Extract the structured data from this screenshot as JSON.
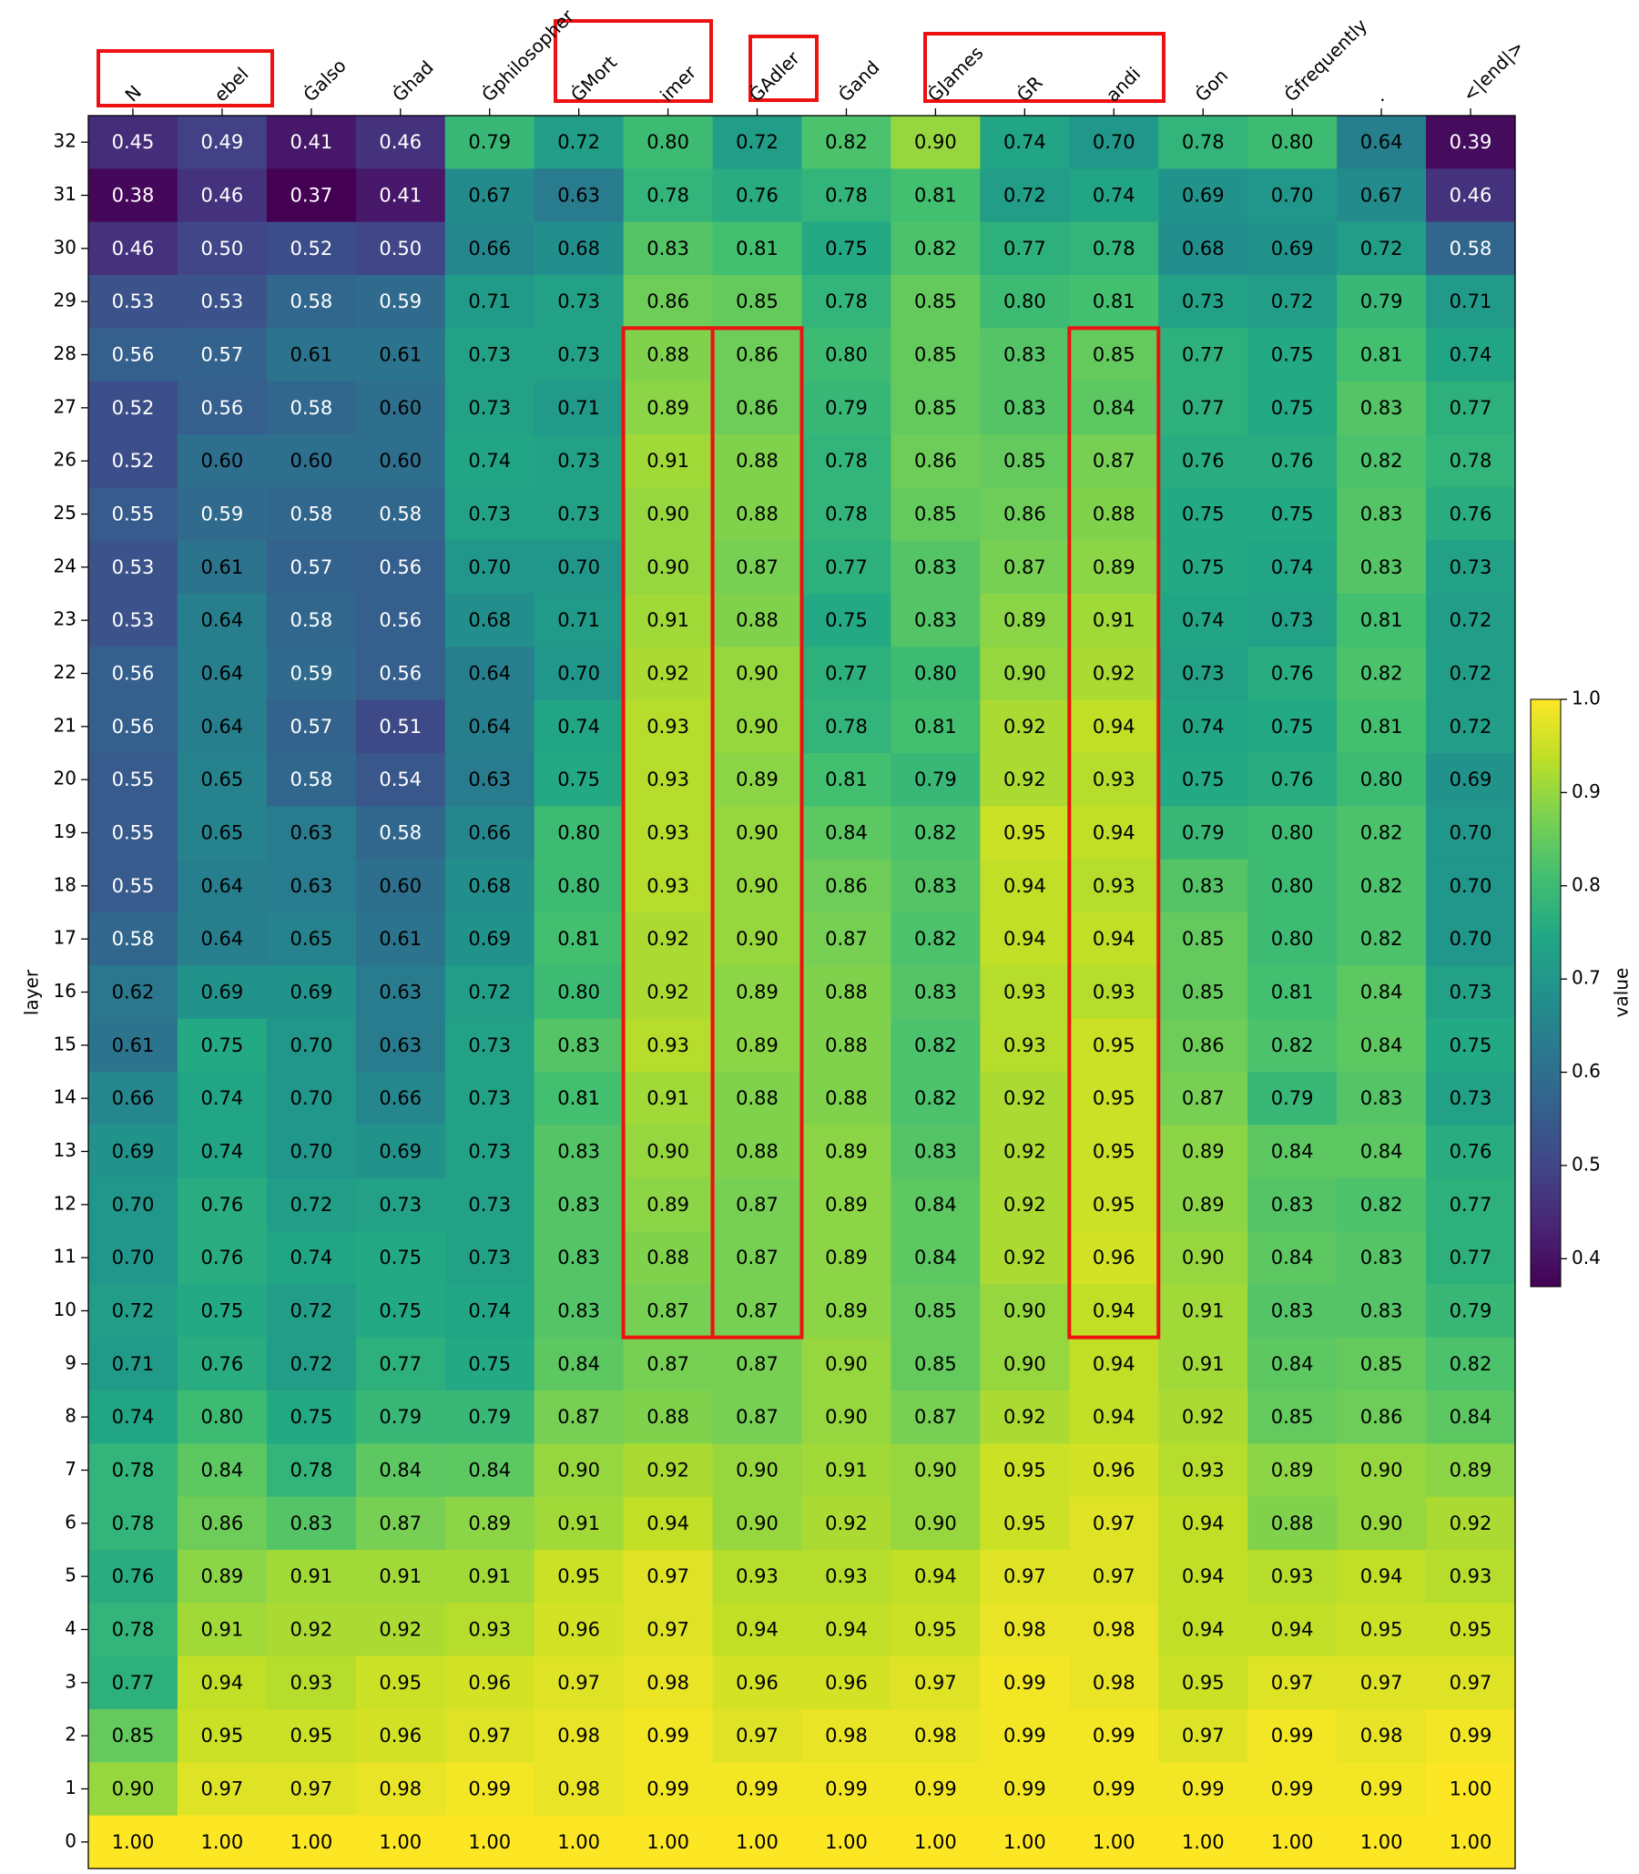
{
  "chart_data": {
    "type": "heatmap",
    "x_categories": [
      "N",
      "ebel",
      "Ġalso",
      "Ġhad",
      "Ġphilosopher",
      "ĠMort",
      "imer",
      "ĠAdler",
      "Ġand",
      "ĠJames",
      "ĠR",
      "andi",
      "Ġon",
      "Ġfrequently",
      ".",
      "<|end|>"
    ],
    "y_categories": [
      32,
      31,
      30,
      29,
      28,
      27,
      26,
      25,
      24,
      23,
      22,
      21,
      20,
      19,
      18,
      17,
      16,
      15,
      14,
      13,
      12,
      11,
      10,
      9,
      8,
      7,
      6,
      5,
      4,
      3,
      2,
      1,
      0
    ],
    "ylabel": "layer",
    "colorbar_label": "value",
    "colormap": "viridis",
    "zlim": [
      0.37,
      1.0
    ],
    "zticks": [
      0.4,
      0.5,
      0.6,
      0.7,
      0.8,
      0.9,
      {
        "value": 1.0,
        "label": "1.0"
      }
    ],
    "values": [
      [
        0.45,
        0.49,
        0.41,
        0.46,
        0.79,
        0.72,
        0.8,
        0.72,
        0.82,
        0.9,
        0.74,
        0.7,
        0.78,
        0.8,
        0.64,
        0.39
      ],
      [
        0.38,
        0.46,
        0.37,
        0.41,
        0.67,
        0.63,
        0.78,
        0.76,
        0.78,
        0.81,
        0.72,
        0.74,
        0.69,
        0.7,
        0.67,
        0.46
      ],
      [
        0.46,
        0.5,
        0.52,
        0.5,
        0.66,
        0.68,
        0.83,
        0.81,
        0.75,
        0.82,
        0.77,
        0.78,
        0.68,
        0.69,
        0.72,
        0.58
      ],
      [
        0.53,
        0.53,
        0.58,
        0.59,
        0.71,
        0.73,
        0.86,
        0.85,
        0.78,
        0.85,
        0.8,
        0.81,
        0.73,
        0.72,
        0.79,
        0.71
      ],
      [
        0.56,
        0.57,
        0.61,
        0.61,
        0.73,
        0.73,
        0.88,
        0.86,
        0.8,
        0.85,
        0.83,
        0.85,
        0.77,
        0.75,
        0.81,
        0.74
      ],
      [
        0.52,
        0.56,
        0.58,
        0.6,
        0.73,
        0.71,
        0.89,
        0.86,
        0.79,
        0.85,
        0.83,
        0.84,
        0.77,
        0.75,
        0.83,
        0.77
      ],
      [
        0.52,
        0.6,
        0.6,
        0.6,
        0.74,
        0.73,
        0.91,
        0.88,
        0.78,
        0.86,
        0.85,
        0.87,
        0.76,
        0.76,
        0.82,
        0.78
      ],
      [
        0.55,
        0.59,
        0.58,
        0.58,
        0.73,
        0.73,
        0.9,
        0.88,
        0.78,
        0.85,
        0.86,
        0.88,
        0.75,
        0.75,
        0.83,
        0.76
      ],
      [
        0.53,
        0.61,
        0.57,
        0.56,
        0.7,
        0.7,
        0.9,
        0.87,
        0.77,
        0.83,
        0.87,
        0.89,
        0.75,
        0.74,
        0.83,
        0.73
      ],
      [
        0.53,
        0.64,
        0.58,
        0.56,
        0.68,
        0.71,
        0.91,
        0.88,
        0.75,
        0.83,
        0.89,
        0.91,
        0.74,
        0.73,
        0.81,
        0.72
      ],
      [
        0.56,
        0.64,
        0.59,
        0.56,
        0.64,
        0.7,
        0.92,
        0.9,
        0.77,
        0.8,
        0.9,
        0.92,
        0.73,
        0.76,
        0.82,
        0.72
      ],
      [
        0.56,
        0.64,
        0.57,
        0.51,
        0.64,
        0.74,
        0.93,
        0.9,
        0.78,
        0.81,
        0.92,
        0.94,
        0.74,
        0.75,
        0.81,
        0.72
      ],
      [
        0.55,
        0.65,
        0.58,
        0.54,
        0.63,
        0.75,
        0.93,
        0.89,
        0.81,
        0.79,
        0.92,
        0.93,
        0.75,
        0.76,
        0.8,
        0.69
      ],
      [
        0.55,
        0.65,
        0.63,
        0.58,
        0.66,
        0.8,
        0.93,
        0.9,
        0.84,
        0.82,
        0.95,
        0.94,
        0.79,
        0.8,
        0.82,
        0.7
      ],
      [
        0.55,
        0.64,
        0.63,
        0.6,
        0.68,
        0.8,
        0.93,
        0.9,
        0.86,
        0.83,
        0.94,
        0.93,
        0.83,
        0.8,
        0.82,
        0.7
      ],
      [
        0.58,
        0.64,
        0.65,
        0.61,
        0.69,
        0.81,
        0.92,
        0.9,
        0.87,
        0.82,
        0.94,
        0.94,
        0.85,
        0.8,
        0.82,
        0.7
      ],
      [
        0.62,
        0.69,
        0.69,
        0.63,
        0.72,
        0.8,
        0.92,
        0.89,
        0.88,
        0.83,
        0.93,
        0.93,
        0.85,
        0.81,
        0.84,
        0.73
      ],
      [
        0.61,
        0.75,
        0.7,
        0.63,
        0.73,
        0.83,
        0.93,
        0.89,
        0.88,
        0.82,
        0.93,
        0.95,
        0.86,
        0.82,
        0.84,
        0.75
      ],
      [
        0.66,
        0.74,
        0.7,
        0.66,
        0.73,
        0.81,
        0.91,
        0.88,
        0.88,
        0.82,
        0.92,
        0.95,
        0.87,
        0.79,
        0.83,
        0.73
      ],
      [
        0.69,
        0.74,
        0.7,
        0.69,
        0.73,
        0.83,
        0.9,
        0.88,
        0.89,
        0.83,
        0.92,
        0.95,
        0.89,
        0.84,
        0.84,
        0.76
      ],
      [
        0.7,
        0.76,
        0.72,
        0.73,
        0.73,
        0.83,
        0.89,
        0.87,
        0.89,
        0.84,
        0.92,
        0.95,
        0.89,
        0.83,
        0.82,
        0.77
      ],
      [
        0.7,
        0.76,
        0.74,
        0.75,
        0.73,
        0.83,
        0.88,
        0.87,
        0.89,
        0.84,
        0.92,
        0.96,
        0.9,
        0.84,
        0.83,
        0.77
      ],
      [
        0.72,
        0.75,
        0.72,
        0.75,
        0.74,
        0.83,
        0.87,
        0.87,
        0.89,
        0.85,
        0.9,
        0.94,
        0.91,
        0.83,
        0.83,
        0.79
      ],
      [
        0.71,
        0.76,
        0.72,
        0.77,
        0.75,
        0.84,
        0.87,
        0.87,
        0.9,
        0.85,
        0.9,
        0.94,
        0.91,
        0.84,
        0.85,
        0.82
      ],
      [
        0.74,
        0.8,
        0.75,
        0.79,
        0.79,
        0.87,
        0.88,
        0.87,
        0.9,
        0.87,
        0.92,
        0.94,
        0.92,
        0.85,
        0.86,
        0.84
      ],
      [
        0.78,
        0.84,
        0.78,
        0.84,
        0.84,
        0.9,
        0.92,
        0.9,
        0.91,
        0.9,
        0.95,
        0.96,
        0.93,
        0.89,
        0.9,
        0.89
      ],
      [
        0.78,
        0.86,
        0.83,
        0.87,
        0.89,
        0.91,
        0.94,
        0.9,
        0.92,
        0.9,
        0.95,
        0.97,
        0.94,
        0.88,
        0.9,
        0.92
      ],
      [
        0.76,
        0.89,
        0.91,
        0.91,
        0.91,
        0.95,
        0.97,
        0.93,
        0.93,
        0.94,
        0.97,
        0.97,
        0.94,
        0.93,
        0.94,
        0.93
      ],
      [
        0.78,
        0.91,
        0.92,
        0.92,
        0.93,
        0.96,
        0.97,
        0.94,
        0.94,
        0.95,
        0.98,
        0.98,
        0.94,
        0.94,
        0.95,
        0.95
      ],
      [
        0.77,
        0.94,
        0.93,
        0.95,
        0.96,
        0.97,
        0.98,
        0.96,
        0.96,
        0.97,
        0.99,
        0.98,
        0.95,
        0.97,
        0.97,
        0.97
      ],
      [
        0.85,
        0.95,
        0.95,
        0.96,
        0.97,
        0.98,
        0.99,
        0.97,
        0.98,
        0.98,
        0.99,
        0.99,
        0.97,
        0.99,
        0.98,
        0.99
      ],
      [
        0.9,
        0.97,
        0.97,
        0.98,
        0.99,
        0.98,
        0.99,
        0.99,
        0.99,
        0.99,
        0.99,
        0.99,
        0.99,
        0.99,
        0.99,
        1.0
      ],
      [
        1.0,
        1.0,
        1.0,
        1.0,
        1.0,
        1.0,
        1.0,
        1.0,
        1.0,
        1.0,
        1.0,
        1.0,
        1.0,
        1.0,
        1.0,
        1.0
      ]
    ],
    "value_labels": [
      [
        "0.45",
        "0.49",
        "0.41",
        "0.46",
        "0.79",
        "0.72",
        "0.80",
        "0.72",
        "0.82",
        "0.90",
        "0.74",
        "0.70",
        "0.78",
        "0.80",
        "0.64",
        "0.39"
      ],
      [
        "0.38",
        "0.46",
        "0.37",
        "0.41",
        "0.67",
        "0.63",
        "0.78",
        "0.76",
        "0.78",
        "0.81",
        "0.72",
        "0.74",
        "0.69",
        "0.70",
        "0.67",
        "0.46"
      ],
      [
        "0.46",
        "0.50",
        "0.52",
        "0.50",
        "0.66",
        "0.68",
        "0.83",
        "0.81",
        "0.75",
        "0.82",
        "0.77",
        "0.78",
        "0.68",
        "0.69",
        "0.72",
        "0.58"
      ],
      [
        "0.53",
        "0.53",
        "0.58",
        "0.59",
        "0.71",
        "0.73",
        "0.86",
        "0.85",
        "0.78",
        "0.85",
        "0.80",
        "0.81",
        "0.73",
        "0.72",
        "0.79",
        "0.71"
      ],
      [
        "0.56",
        "0.57",
        "0.61",
        "0.61",
        "0.73",
        "0.73",
        "0.88",
        "0.86",
        "0.80",
        "0.85",
        "0.83",
        "0.85",
        "0.77",
        "0.75",
        "0.81",
        "0.74"
      ],
      [
        "0.52",
        "0.56",
        "0.58",
        "0.60",
        "0.73",
        "0.71",
        "0.89",
        "0.86",
        "0.79",
        "0.85",
        "0.83",
        "0.84",
        "0.77",
        "0.75",
        "0.83",
        "0.77"
      ],
      [
        "0.52",
        "0.60",
        "0.60",
        "0.60",
        "0.74",
        "0.73",
        "0.91",
        "0.88",
        "0.78",
        "0.86",
        "0.85",
        "0.87",
        "0.76",
        "0.76",
        "0.82",
        "0.78"
      ],
      [
        "0.55",
        "0.59",
        "0.58",
        "0.58",
        "0.73",
        "0.73",
        "0.90",
        "0.88",
        "0.78",
        "0.85",
        "0.86",
        "0.88",
        "0.75",
        "0.75",
        "0.83",
        "0.76"
      ],
      [
        "0.53",
        "0.61",
        "0.57",
        "0.56",
        "0.70",
        "0.70",
        "0.90",
        "0.87",
        "0.77",
        "0.83",
        "0.87",
        "0.89",
        "0.75",
        "0.74",
        "0.83",
        "0.73"
      ],
      [
        "0.53",
        "0.64",
        "0.58",
        "0.56",
        "0.68",
        "0.71",
        "0.91",
        "0.88",
        "0.75",
        "0.83",
        "0.89",
        "0.91",
        "0.74",
        "0.73",
        "0.81",
        "0.72"
      ],
      [
        "0.56",
        "0.64",
        "0.59",
        "0.56",
        "0.64",
        "0.70",
        "0.92",
        "0.90",
        "0.77",
        "0.80",
        "0.90",
        "0.92",
        "0.73",
        "0.76",
        "0.82",
        "0.72"
      ],
      [
        "0.56",
        "0.64",
        "0.57",
        "0.51",
        "0.64",
        "0.74",
        "0.93",
        "0.90",
        "0.78",
        "0.81",
        "0.92",
        "0.94",
        "0.74",
        "0.75",
        "0.81",
        "0.72"
      ],
      [
        "0.55",
        "0.65",
        "0.58",
        "0.54",
        "0.63",
        "0.75",
        "0.93",
        "0.89",
        "0.81",
        "0.79",
        "0.92",
        "0.93",
        "0.75",
        "0.76",
        "0.80",
        "0.69"
      ],
      [
        "0.55",
        "0.65",
        "0.63",
        "0.58",
        "0.66",
        "0.80",
        "0.93",
        "0.90",
        "0.84",
        "0.82",
        "0.95",
        "0.94",
        "0.79",
        "0.80",
        "0.82",
        "0.70"
      ],
      [
        "0.55",
        "0.64",
        "0.63",
        "0.60",
        "0.68",
        "0.80",
        "0.93",
        "0.90",
        "0.86",
        "0.83",
        "0.94",
        "0.93",
        "0.83",
        "0.80",
        "0.82",
        "0.70"
      ],
      [
        "0.58",
        "0.64",
        "0.65",
        "0.61",
        "0.69",
        "0.81",
        "0.92",
        "0.90",
        "0.87",
        "0.82",
        "0.94",
        "0.94",
        "0.85",
        "0.80",
        "0.82",
        "0.70"
      ],
      [
        "0.62",
        "0.69",
        "0.69",
        "0.63",
        "0.72",
        "0.80",
        "0.92",
        "0.89",
        "0.88",
        "0.83",
        "0.93",
        "0.93",
        "0.85",
        "0.81",
        "0.84",
        "0.73"
      ],
      [
        "0.61",
        "0.75",
        "0.70",
        "0.63",
        "0.73",
        "0.83",
        "0.93",
        "0.89",
        "0.88",
        "0.82",
        "0.93",
        "0.95",
        "0.86",
        "0.82",
        "0.84",
        "0.75"
      ],
      [
        "0.66",
        "0.74",
        "0.70",
        "0.66",
        "0.73",
        "0.81",
        "0.91",
        "0.88",
        "0.88",
        "0.82",
        "0.92",
        "0.95",
        "0.87",
        "0.79",
        "0.83",
        "0.73"
      ],
      [
        "0.69",
        "0.74",
        "0.70",
        "0.69",
        "0.73",
        "0.83",
        "0.90",
        "0.88",
        "0.89",
        "0.83",
        "0.92",
        "0.95",
        "0.89",
        "0.84",
        "0.84",
        "0.76"
      ],
      [
        "0.70",
        "0.76",
        "0.72",
        "0.73",
        "0.73",
        "0.83",
        "0.89",
        "0.87",
        "0.89",
        "0.84",
        "0.92",
        "0.95",
        "0.89",
        "0.83",
        "0.82",
        "0.77"
      ],
      [
        "0.70",
        "0.76",
        "0.74",
        "0.75",
        "0.73",
        "0.83",
        "0.88",
        "0.87",
        "0.89",
        "0.84",
        "0.92",
        "0.96",
        "0.90",
        "0.84",
        "0.83",
        "0.77"
      ],
      [
        "0.72",
        "0.75",
        "0.72",
        "0.75",
        "0.74",
        "0.83",
        "0.87",
        "0.87",
        "0.89",
        "0.85",
        "0.90",
        "0.94",
        "0.91",
        "0.83",
        "0.83",
        "0.79"
      ],
      [
        "0.71",
        "0.76",
        "0.72",
        "0.77",
        "0.75",
        "0.84",
        "0.87",
        "0.87",
        "0.90",
        "0.85",
        "0.90",
        "0.94",
        "0.91",
        "0.84",
        "0.85",
        "0.82"
      ],
      [
        "0.74",
        "0.80",
        "0.75",
        "0.79",
        "0.79",
        "0.87",
        "0.88",
        "0.87",
        "0.90",
        "0.87",
        "0.92",
        "0.94",
        "0.92",
        "0.85",
        "0.86",
        "0.84"
      ],
      [
        "0.78",
        "0.84",
        "0.78",
        "0.84",
        "0.84",
        "0.90",
        "0.92",
        "0.90",
        "0.91",
        "0.90",
        "0.95",
        "0.96",
        "0.93",
        "0.89",
        "0.90",
        "0.89"
      ],
      [
        "0.78",
        "0.86",
        "0.83",
        "0.87",
        "0.89",
        "0.91",
        "0.94",
        "0.90",
        "0.92",
        "0.90",
        "0.95",
        "0.97",
        "0.94",
        "0.88",
        "0.90",
        "0.92"
      ],
      [
        "0.76",
        "0.89",
        "0.91",
        "0.91",
        "0.91",
        "0.95",
        "0.97",
        "0.93",
        "0.93",
        "0.94",
        "0.97",
        "0.97",
        "0.94",
        "0.93",
        "0.94",
        "0.93"
      ],
      [
        "0.78",
        "0.91",
        "0.92",
        "0.92",
        "0.93",
        "0.96",
        "0.97",
        "0.94",
        "0.94",
        "0.95",
        "0.98",
        "0.98",
        "0.94",
        "0.94",
        "0.95",
        "0.95"
      ],
      [
        "0.77",
        "0.94",
        "0.93",
        "0.95",
        "0.96",
        "0.97",
        "0.98",
        "0.96",
        "0.96",
        "0.97",
        "0.99",
        "0.98",
        "0.95",
        "0.97",
        "0.97",
        "0.97"
      ],
      [
        "0.85",
        "0.95",
        "0.95",
        "0.96",
        "0.97",
        "0.98",
        "0.99",
        "0.97",
        "0.98",
        "0.98",
        "0.99",
        "0.99",
        "0.97",
        "0.99",
        "0.98",
        "0.99"
      ],
      [
        "0.90",
        "0.97",
        "0.97",
        "0.98",
        "0.99",
        "0.98",
        "0.99",
        "0.99",
        "0.99",
        "0.99",
        "0.99",
        "0.99",
        "0.99",
        "0.99",
        "0.99",
        "1.00"
      ],
      [
        "1.00",
        "1.00",
        "1.00",
        "1.00",
        "1.00",
        "1.00",
        "1.00",
        "1.00",
        "1.00",
        "1.00",
        "1.00",
        "1.00",
        "1.00",
        "1.00",
        "1.00",
        "1.00"
      ]
    ]
  }
}
